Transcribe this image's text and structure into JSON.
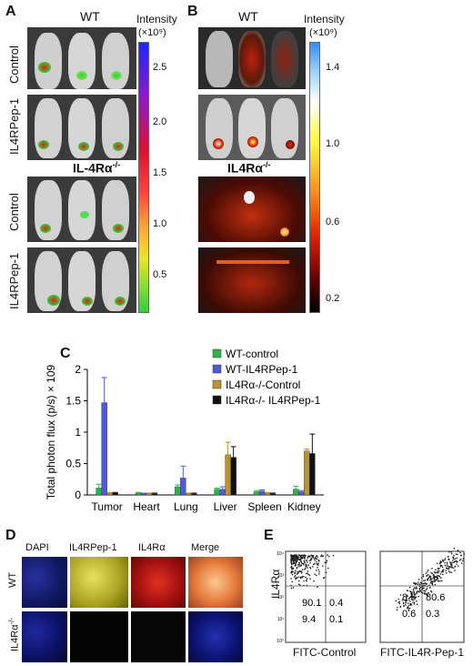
{
  "panels": {
    "A": "A",
    "B": "B",
    "C": "C",
    "D": "D",
    "E": "E"
  },
  "panel_a": {
    "title_wt": "WT",
    "title_ko": "IL-4Rα",
    "title_ko_sup": "-/-",
    "row_labels": [
      "Control",
      "IL4RPep-1",
      "Control",
      "IL4RPep-1"
    ],
    "colorbar_title": "Intensity",
    "colorbar_unit": "(×10⁹)",
    "colorbar_ticks": [
      "2.5",
      "2.0",
      "1.5",
      "1.0",
      "0.5"
    ]
  },
  "panel_b": {
    "title_wt": "WT",
    "title_ko": "IL4Rα",
    "title_ko_sup": "-/-",
    "colorbar_title": "Intensity",
    "colorbar_unit": "(×10⁹)",
    "colorbar_ticks": [
      "1.4",
      "1.0",
      "0.6",
      "0.2"
    ]
  },
  "chart_data": {
    "type": "bar",
    "ylabel": "Total photon flux (p/s) × 109",
    "ylim": [
      0,
      2
    ],
    "yticks": [
      "0",
      "0.5",
      "1",
      "1.5",
      "2"
    ],
    "categories": [
      "Tumor",
      "Heart",
      "Lung",
      "Liver",
      "Spleen",
      "Kidney"
    ],
    "legend_position": "top-right",
    "series": [
      {
        "name": "WT-control",
        "color": "#2db34a",
        "values": [
          0.11,
          0.03,
          0.13,
          0.09,
          0.05,
          0.09
        ],
        "errors": [
          0.06,
          0.01,
          0.03,
          0.02,
          0.02,
          0.05
        ]
      },
      {
        "name": "WT-IL4RPep-1",
        "color": "#4f5bd5",
        "values": [
          1.47,
          0.02,
          0.27,
          0.09,
          0.06,
          0.05
        ],
        "errors": [
          0.4,
          0.01,
          0.19,
          0.04,
          0.02,
          0.02
        ]
      },
      {
        "name": "IL4Rα-/-Control",
        "color": "#b8952e",
        "values": [
          0.03,
          0.02,
          0.02,
          0.64,
          0.03,
          0.7
        ],
        "errors": [
          0.01,
          0.01,
          0.01,
          0.2,
          0.01,
          0.03
        ]
      },
      {
        "name": "IL4Rα-/- IL4RPep-1",
        "color": "#111111",
        "values": [
          0.03,
          0.02,
          0.02,
          0.6,
          0.02,
          0.66
        ],
        "errors": [
          0.01,
          0.01,
          0.01,
          0.17,
          0.01,
          0.31
        ]
      }
    ]
  },
  "panel_d": {
    "columns": [
      "DAPI",
      "IL4RPep-1",
      "IL4Rα",
      "Merge"
    ],
    "rows": [
      "WT",
      "IL4Rα"
    ],
    "row_sup": "-/-"
  },
  "panel_e": {
    "ylabel": "IL4Rα",
    "plots": [
      {
        "xlabel": "FITC-Control",
        "quadrants": [
          "90.1",
          "0.4",
          "9.4",
          "0.1"
        ]
      },
      {
        "xlabel": "FITC-IL4R-Pep-1",
        "quadrants": [
          "8.5",
          "80.6",
          "0.6",
          "0.3"
        ]
      }
    ],
    "axis_ticks": [
      "10⁴",
      "10³",
      "10²",
      "10¹",
      "10⁰"
    ]
  }
}
